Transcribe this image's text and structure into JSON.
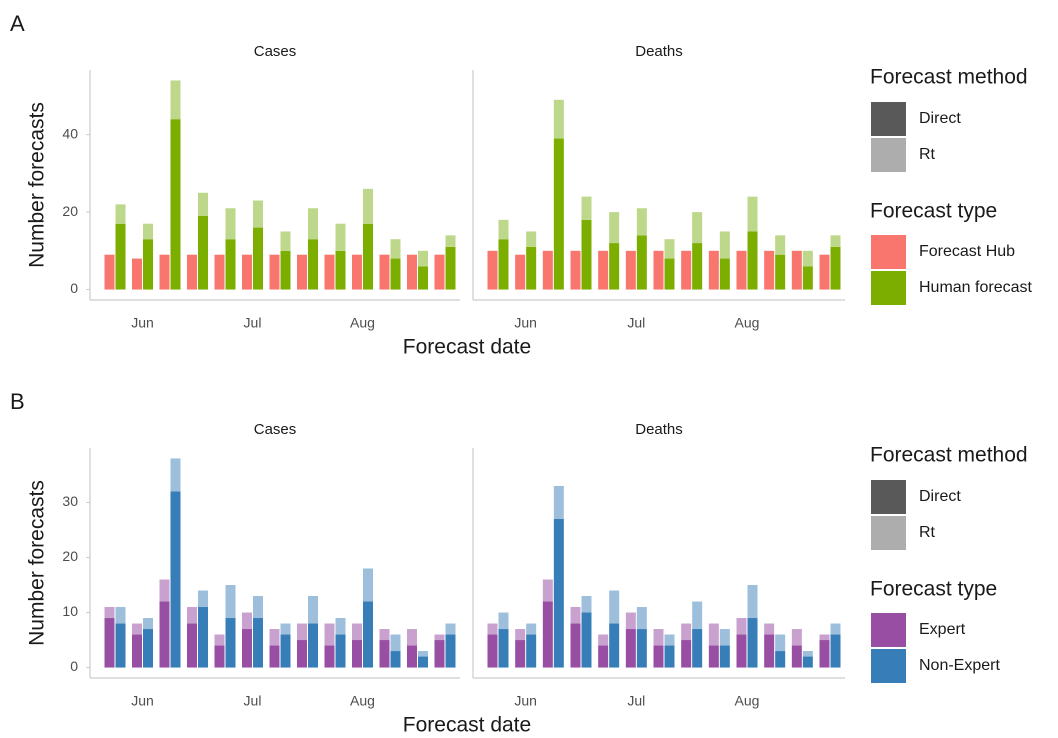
{
  "figures": [
    {
      "tag": "A",
      "x_label": "Forecast date",
      "y_label": "Number forecasts",
      "ylim": [
        -2.7,
        56.7
      ],
      "yticks": [
        0,
        20,
        40
      ],
      "legend": {
        "method_title": "Forecast method",
        "methods": [
          {
            "name": "Direct",
            "color": "#595959"
          },
          {
            "name": "Rt",
            "color": "#adadad"
          }
        ],
        "type_title": "Forecast type",
        "types": [
          {
            "name": "Forecast Hub",
            "color": "#f8766d"
          },
          {
            "name": "Human forecast",
            "color": "#7cae00"
          }
        ]
      },
      "chart_data": [
        {
          "type": "bar",
          "title": "Cases",
          "categories": [
            null,
            "Jun",
            null,
            null,
            null,
            "Jul",
            null,
            null,
            null,
            "Aug",
            null,
            null,
            null
          ],
          "series": [
            {
              "name": "Forecast Hub",
              "method": "Direct",
              "color": "#f8766d",
              "values": [
                9,
                8,
                9,
                9,
                9,
                9,
                9,
                9,
                9,
                9,
                9,
                9,
                9
              ]
            },
            {
              "name": "Human forecast",
              "method": "Direct",
              "color": "#7cae00",
              "values": [
                17,
                13,
                44,
                19,
                13,
                16,
                10,
                13,
                10,
                17,
                8,
                6,
                11
              ]
            },
            {
              "name": "Human forecast",
              "method": "Rt",
              "color": "#bdd88a",
              "values": [
                5,
                4,
                10,
                6,
                8,
                7,
                5,
                8,
                7,
                9,
                5,
                4,
                3
              ]
            }
          ]
        },
        {
          "type": "bar",
          "title": "Deaths",
          "categories": [
            null,
            "Jun",
            null,
            null,
            null,
            "Jul",
            null,
            null,
            null,
            "Aug",
            null,
            null,
            null
          ],
          "series": [
            {
              "name": "Forecast Hub",
              "method": "Direct",
              "color": "#f8766d",
              "values": [
                10,
                9,
                10,
                10,
                10,
                10,
                10,
                10,
                10,
                10,
                10,
                10,
                9
              ]
            },
            {
              "name": "Human forecast",
              "method": "Direct",
              "color": "#7cae00",
              "values": [
                13,
                11,
                39,
                18,
                12,
                14,
                8,
                12,
                8,
                15,
                9,
                6,
                11
              ]
            },
            {
              "name": "Human forecast",
              "method": "Rt",
              "color": "#bdd88a",
              "values": [
                5,
                4,
                10,
                6,
                8,
                7,
                5,
                8,
                7,
                9,
                5,
                4,
                3
              ]
            }
          ]
        }
      ]
    },
    {
      "tag": "B",
      "x_label": "Forecast date",
      "y_label": "Number forecasts",
      "ylim": [
        -1.9,
        39.9
      ],
      "yticks": [
        0,
        10,
        20,
        30
      ],
      "legend": {
        "method_title": "Forecast method",
        "methods": [
          {
            "name": "Direct",
            "color": "#595959"
          },
          {
            "name": "Rt",
            "color": "#adadad"
          }
        ],
        "type_title": "Forecast type",
        "types": [
          {
            "name": "Expert",
            "color": "#984ea3"
          },
          {
            "name": "Non-Expert",
            "color": "#377eb8"
          }
        ]
      },
      "chart_data": [
        {
          "type": "bar",
          "title": "Cases",
          "categories": [
            null,
            "Jun",
            null,
            null,
            null,
            "Jul",
            null,
            null,
            null,
            "Aug",
            null,
            null,
            null
          ],
          "series": [
            {
              "name": "Expert",
              "method": "Direct",
              "color": "#984ea3",
              "values": [
                9,
                6,
                12,
                8,
                4,
                7,
                4,
                5,
                4,
                5,
                5,
                4,
                5
              ]
            },
            {
              "name": "Expert",
              "method": "Rt",
              "color": "#c9a1cf",
              "values": [
                2,
                2,
                4,
                3,
                2,
                3,
                3,
                3,
                4,
                3,
                2,
                3,
                1
              ]
            },
            {
              "name": "Non-Expert",
              "method": "Direct",
              "color": "#377eb8",
              "values": [
                8,
                7,
                32,
                11,
                9,
                9,
                6,
                8,
                6,
                12,
                3,
                2,
                6
              ]
            },
            {
              "name": "Non-Expert",
              "method": "Rt",
              "color": "#9dbfdc",
              "values": [
                3,
                2,
                6,
                3,
                6,
                4,
                2,
                5,
                3,
                6,
                3,
                1,
                2
              ]
            }
          ]
        },
        {
          "type": "bar",
          "title": "Deaths",
          "categories": [
            null,
            "Jun",
            null,
            null,
            null,
            "Jul",
            null,
            null,
            null,
            "Aug",
            null,
            null,
            null
          ],
          "series": [
            {
              "name": "Expert",
              "method": "Direct",
              "color": "#984ea3",
              "values": [
                6,
                5,
                12,
                8,
                4,
                7,
                4,
                5,
                4,
                6,
                6,
                4,
                5
              ]
            },
            {
              "name": "Expert",
              "method": "Rt",
              "color": "#c9a1cf",
              "values": [
                2,
                2,
                4,
                3,
                2,
                3,
                3,
                3,
                4,
                3,
                2,
                3,
                1
              ]
            },
            {
              "name": "Non-Expert",
              "method": "Direct",
              "color": "#377eb8",
              "values": [
                7,
                6,
                27,
                10,
                8,
                7,
                4,
                7,
                4,
                9,
                3,
                2,
                6
              ]
            },
            {
              "name": "Non-Expert",
              "method": "Rt",
              "color": "#9dbfdc",
              "values": [
                3,
                2,
                6,
                3,
                6,
                4,
                2,
                5,
                3,
                6,
                3,
                1,
                2
              ]
            }
          ]
        }
      ]
    }
  ]
}
